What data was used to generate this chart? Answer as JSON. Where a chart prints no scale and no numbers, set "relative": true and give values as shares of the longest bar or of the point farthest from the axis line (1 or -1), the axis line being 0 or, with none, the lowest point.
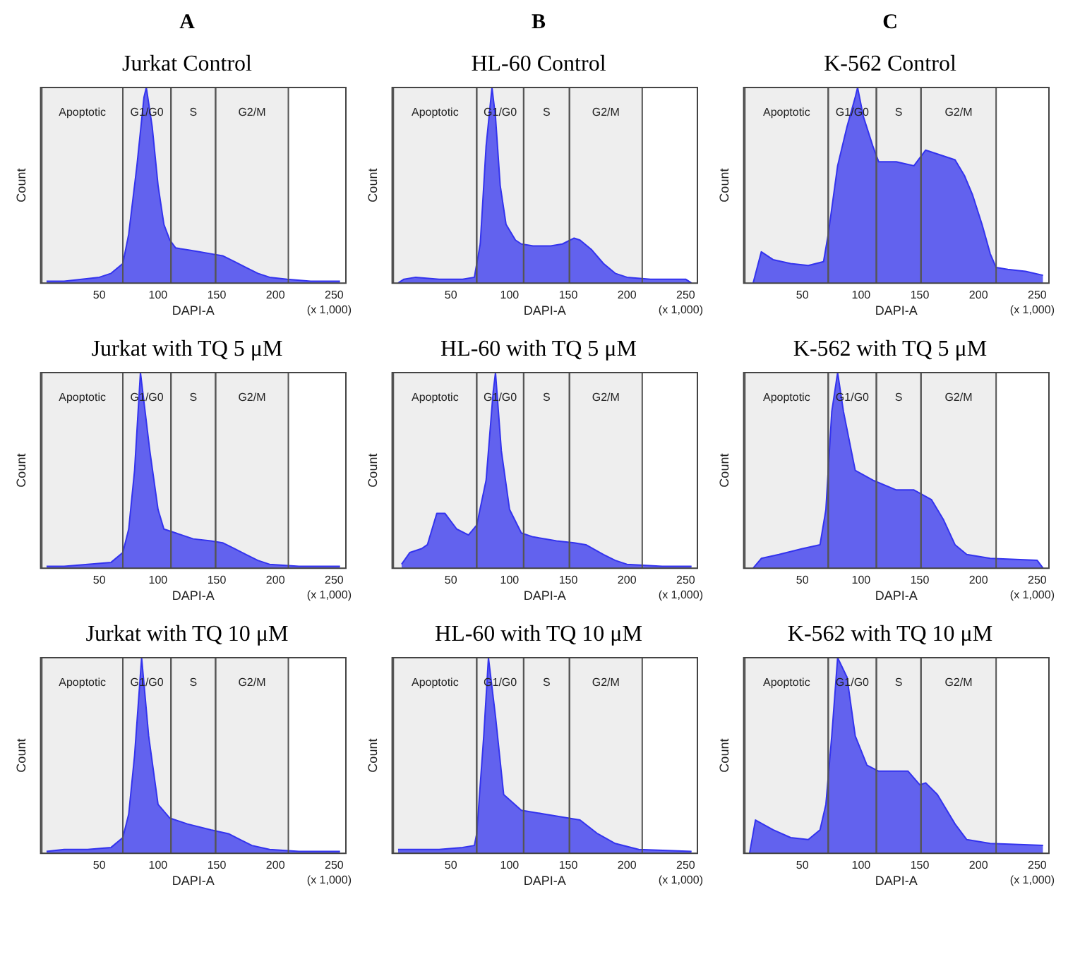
{
  "chart_data": [
    {
      "type": "area",
      "subtitle": "A",
      "title": "Jurkat Control",
      "xlabel": "DAPI-A",
      "ylabel": "Count",
      "relative": true,
      "tick_labels": "x",
      "xlim": [
        0,
        260
      ],
      "xticks": [
        50,
        100,
        150,
        200,
        250
      ],
      "annotations": [
        "(x 1,000)"
      ],
      "bands": [
        {
          "axis": "x",
          "from": 1,
          "to": 70,
          "label": "Apoptotic",
          "color": "#555555"
        },
        {
          "axis": "x",
          "from": 70,
          "to": 111,
          "label": "G1/G0",
          "color": "#555555"
        },
        {
          "axis": "x",
          "from": 111,
          "to": 149,
          "label": "S",
          "color": "#555555"
        },
        {
          "axis": "x",
          "from": 149,
          "to": 211,
          "label": "G2/M",
          "color": "#555555"
        }
      ],
      "x": [
        5,
        20,
        35,
        50,
        60,
        70,
        75,
        82,
        88,
        90,
        95,
        100,
        105,
        110,
        115,
        125,
        135,
        145,
        155,
        165,
        175,
        185,
        195,
        210,
        230,
        255
      ],
      "series": [
        {
          "color": "#3333ee",
          "values": [
            0.01,
            0.01,
            0.02,
            0.03,
            0.05,
            0.1,
            0.25,
            0.6,
            0.95,
            1.0,
            0.8,
            0.5,
            0.3,
            0.22,
            0.18,
            0.17,
            0.16,
            0.15,
            0.14,
            0.11,
            0.08,
            0.05,
            0.03,
            0.02,
            0.01,
            0.01
          ]
        }
      ]
    },
    {
      "type": "area",
      "subtitle": "B",
      "title": "HL-60 Control",
      "xlabel": "DAPI-A",
      "ylabel": "Count",
      "relative": true,
      "tick_labels": "x",
      "xlim": [
        0,
        260
      ],
      "xticks": [
        50,
        100,
        150,
        200,
        250
      ],
      "annotations": [
        "(x 1,000)"
      ],
      "bands": [
        {
          "axis": "x",
          "from": 1,
          "to": 72,
          "label": "Apoptotic",
          "color": "#555555"
        },
        {
          "axis": "x",
          "from": 72,
          "to": 112,
          "label": "G1/G0",
          "color": "#555555"
        },
        {
          "axis": "x",
          "from": 112,
          "to": 151,
          "label": "S",
          "color": "#555555"
        },
        {
          "axis": "x",
          "from": 151,
          "to": 213,
          "label": "G2/M",
          "color": "#555555"
        }
      ],
      "x": [
        5,
        10,
        20,
        40,
        60,
        70,
        75,
        80,
        85,
        88,
        92,
        97,
        105,
        110,
        120,
        135,
        145,
        155,
        160,
        170,
        180,
        190,
        200,
        220,
        250,
        255
      ],
      "series": [
        {
          "color": "#3333ee",
          "values": [
            0,
            0.02,
            0.03,
            0.02,
            0.02,
            0.03,
            0.2,
            0.7,
            1.0,
            0.85,
            0.5,
            0.3,
            0.22,
            0.2,
            0.19,
            0.19,
            0.2,
            0.23,
            0.22,
            0.17,
            0.1,
            0.05,
            0.03,
            0.02,
            0.02,
            0
          ]
        }
      ]
    },
    {
      "type": "area",
      "subtitle": "C",
      "title": "K-562 Control",
      "xlabel": "DAPI-A",
      "ylabel": "Count",
      "relative": true,
      "tick_labels": "x",
      "xlim": [
        0,
        260
      ],
      "xticks": [
        50,
        100,
        150,
        200,
        250
      ],
      "annotations": [
        "(x 1,000)"
      ],
      "bands": [
        {
          "axis": "x",
          "from": 1,
          "to": 72,
          "label": "Apoptotic",
          "color": "#555555"
        },
        {
          "axis": "x",
          "from": 72,
          "to": 113,
          "label": "G1/G0",
          "color": "#555555"
        },
        {
          "axis": "x",
          "from": 113,
          "to": 151,
          "label": "S",
          "color": "#555555"
        },
        {
          "axis": "x",
          "from": 151,
          "to": 215,
          "label": "G2/M",
          "color": "#555555"
        }
      ],
      "x": [
        8,
        15,
        25,
        40,
        55,
        68,
        72,
        80,
        88,
        95,
        97,
        102,
        110,
        115,
        130,
        145,
        155,
        170,
        180,
        188,
        195,
        203,
        210,
        215,
        225,
        240,
        255
      ],
      "series": [
        {
          "color": "#3333ee",
          "values": [
            0,
            0.16,
            0.12,
            0.1,
            0.09,
            0.11,
            0.25,
            0.6,
            0.8,
            0.95,
            1.0,
            0.85,
            0.7,
            0.62,
            0.62,
            0.6,
            0.68,
            0.65,
            0.63,
            0.55,
            0.45,
            0.3,
            0.15,
            0.08,
            0.07,
            0.06,
            0.04
          ]
        }
      ]
    },
    {
      "type": "area",
      "title": "Jurkat with TQ 5 μM",
      "xlabel": "DAPI-A",
      "ylabel": "Count",
      "relative": true,
      "tick_labels": "x",
      "xlim": [
        0,
        260
      ],
      "xticks": [
        50,
        100,
        150,
        200,
        250
      ],
      "annotations": [
        "(x 1,000)"
      ],
      "bands": [
        {
          "axis": "x",
          "from": 1,
          "to": 70,
          "label": "Apoptotic",
          "color": "#555555"
        },
        {
          "axis": "x",
          "from": 70,
          "to": 111,
          "label": "G1/G0",
          "color": "#555555"
        },
        {
          "axis": "x",
          "from": 111,
          "to": 149,
          "label": "S",
          "color": "#555555"
        },
        {
          "axis": "x",
          "from": 149,
          "to": 211,
          "label": "G2/M",
          "color": "#555555"
        }
      ],
      "x": [
        5,
        20,
        40,
        60,
        70,
        75,
        80,
        85,
        88,
        93,
        100,
        105,
        115,
        130,
        145,
        155,
        165,
        175,
        185,
        195,
        220,
        255
      ],
      "series": [
        {
          "color": "#3333ee",
          "values": [
            0.01,
            0.01,
            0.02,
            0.03,
            0.08,
            0.2,
            0.5,
            1.0,
            0.85,
            0.6,
            0.3,
            0.2,
            0.18,
            0.15,
            0.14,
            0.13,
            0.1,
            0.07,
            0.04,
            0.02,
            0.01,
            0.01
          ]
        }
      ]
    },
    {
      "type": "area",
      "title": "HL-60 with TQ 5 μM",
      "xlabel": "DAPI-A",
      "ylabel": "Count",
      "relative": true,
      "tick_labels": "x",
      "xlim": [
        0,
        260
      ],
      "xticks": [
        50,
        100,
        150,
        200,
        250
      ],
      "annotations": [
        "(x 1,000)"
      ],
      "bands": [
        {
          "axis": "x",
          "from": 1,
          "to": 72,
          "label": "Apoptotic",
          "color": "#555555"
        },
        {
          "axis": "x",
          "from": 72,
          "to": 112,
          "label": "G1/G0",
          "color": "#555555"
        },
        {
          "axis": "x",
          "from": 112,
          "to": 151,
          "label": "S",
          "color": "#555555"
        },
        {
          "axis": "x",
          "from": 151,
          "to": 213,
          "label": "G2/M",
          "color": "#555555"
        }
      ],
      "x": [
        8,
        15,
        25,
        30,
        38,
        45,
        55,
        65,
        72,
        80,
        86,
        88,
        93,
        100,
        110,
        120,
        140,
        155,
        165,
        180,
        190,
        200,
        230,
        255
      ],
      "series": [
        {
          "color": "#3333ee",
          "values": [
            0.02,
            0.08,
            0.1,
            0.12,
            0.28,
            0.28,
            0.2,
            0.17,
            0.22,
            0.45,
            0.9,
            1.0,
            0.6,
            0.3,
            0.18,
            0.16,
            0.14,
            0.13,
            0.12,
            0.07,
            0.04,
            0.02,
            0.01,
            0.01
          ]
        }
      ]
    },
    {
      "type": "area",
      "title": "K-562 with TQ 5 μM",
      "xlabel": "DAPI-A",
      "ylabel": "Count",
      "relative": true,
      "tick_labels": "x",
      "xlim": [
        0,
        260
      ],
      "xticks": [
        50,
        100,
        150,
        200,
        250
      ],
      "annotations": [
        "(x 1,000)"
      ],
      "bands": [
        {
          "axis": "x",
          "from": 1,
          "to": 72,
          "label": "Apoptotic",
          "color": "#555555"
        },
        {
          "axis": "x",
          "from": 72,
          "to": 113,
          "label": "G1/G0",
          "color": "#555555"
        },
        {
          "axis": "x",
          "from": 113,
          "to": 151,
          "label": "S",
          "color": "#555555"
        },
        {
          "axis": "x",
          "from": 151,
          "to": 215,
          "label": "G2/M",
          "color": "#555555"
        }
      ],
      "x": [
        8,
        15,
        30,
        50,
        65,
        70,
        75,
        80,
        85,
        95,
        110,
        130,
        145,
        160,
        170,
        180,
        190,
        210,
        250,
        255
      ],
      "series": [
        {
          "color": "#3333ee",
          "values": [
            0,
            0.05,
            0.07,
            0.1,
            0.12,
            0.3,
            0.8,
            1.0,
            0.8,
            0.5,
            0.45,
            0.4,
            0.4,
            0.35,
            0.25,
            0.12,
            0.07,
            0.05,
            0.04,
            0
          ]
        }
      ]
    },
    {
      "type": "area",
      "title": "Jurkat with TQ 10 μM",
      "xlabel": "DAPI-A",
      "ylabel": "Count",
      "relative": true,
      "tick_labels": "x",
      "xlim": [
        0,
        260
      ],
      "xticks": [
        50,
        100,
        150,
        200,
        250
      ],
      "annotations": [
        "(x 1,000)"
      ],
      "bands": [
        {
          "axis": "x",
          "from": 1,
          "to": 70,
          "label": "Apoptotic",
          "color": "#555555"
        },
        {
          "axis": "x",
          "from": 70,
          "to": 111,
          "label": "G1/G0",
          "color": "#555555"
        },
        {
          "axis": "x",
          "from": 111,
          "to": 149,
          "label": "S",
          "color": "#555555"
        },
        {
          "axis": "x",
          "from": 149,
          "to": 211,
          "label": "G2/M",
          "color": "#555555"
        }
      ],
      "x": [
        5,
        20,
        40,
        60,
        70,
        75,
        80,
        86,
        92,
        100,
        110,
        125,
        145,
        160,
        170,
        180,
        195,
        220,
        255
      ],
      "series": [
        {
          "color": "#3333ee",
          "values": [
            0.01,
            0.02,
            0.02,
            0.03,
            0.08,
            0.2,
            0.5,
            1.0,
            0.6,
            0.25,
            0.18,
            0.15,
            0.12,
            0.1,
            0.07,
            0.04,
            0.02,
            0.01,
            0.01
          ]
        }
      ]
    },
    {
      "type": "area",
      "title": "HL-60 with TQ 10 μM",
      "xlabel": "DAPI-A",
      "ylabel": "Count",
      "relative": true,
      "tick_labels": "x",
      "xlim": [
        0,
        260
      ],
      "xticks": [
        50,
        100,
        150,
        200,
        250
      ],
      "annotations": [
        "(x 1,000)"
      ],
      "bands": [
        {
          "axis": "x",
          "from": 1,
          "to": 72,
          "label": "Apoptotic",
          "color": "#555555"
        },
        {
          "axis": "x",
          "from": 72,
          "to": 112,
          "label": "G1/G0",
          "color": "#555555"
        },
        {
          "axis": "x",
          "from": 112,
          "to": 151,
          "label": "S",
          "color": "#555555"
        },
        {
          "axis": "x",
          "from": 151,
          "to": 213,
          "label": "G2/M",
          "color": "#555555"
        }
      ],
      "x": [
        5,
        20,
        40,
        60,
        70,
        72,
        78,
        82,
        88,
        95,
        110,
        130,
        150,
        160,
        175,
        190,
        210,
        255
      ],
      "series": [
        {
          "color": "#3333ee",
          "values": [
            0.02,
            0.02,
            0.02,
            0.03,
            0.04,
            0.1,
            0.6,
            1.0,
            0.7,
            0.3,
            0.22,
            0.2,
            0.18,
            0.17,
            0.1,
            0.05,
            0.02,
            0.01
          ]
        }
      ]
    },
    {
      "type": "area",
      "title": "K-562 with TQ 10 μM",
      "xlabel": "DAPI-A",
      "ylabel": "Count",
      "relative": true,
      "tick_labels": "x",
      "xlim": [
        0,
        260
      ],
      "xticks": [
        50,
        100,
        150,
        200,
        250
      ],
      "annotations": [
        "(x 1,000)"
      ],
      "bands": [
        {
          "axis": "x",
          "from": 1,
          "to": 72,
          "label": "Apoptotic",
          "color": "#555555"
        },
        {
          "axis": "x",
          "from": 72,
          "to": 113,
          "label": "G1/G0",
          "color": "#555555"
        },
        {
          "axis": "x",
          "from": 113,
          "to": 151,
          "label": "S",
          "color": "#555555"
        },
        {
          "axis": "x",
          "from": 151,
          "to": 215,
          "label": "G2/M",
          "color": "#555555"
        }
      ],
      "x": [
        5,
        10,
        25,
        40,
        55,
        65,
        70,
        75,
        80,
        88,
        95,
        105,
        115,
        140,
        150,
        155,
        165,
        180,
        190,
        210,
        255
      ],
      "series": [
        {
          "color": "#3333ee",
          "values": [
            0,
            0.17,
            0.12,
            0.08,
            0.07,
            0.12,
            0.25,
            0.6,
            1.0,
            0.9,
            0.6,
            0.45,
            0.42,
            0.42,
            0.35,
            0.36,
            0.3,
            0.15,
            0.07,
            0.05,
            0.04
          ]
        }
      ]
    }
  ]
}
